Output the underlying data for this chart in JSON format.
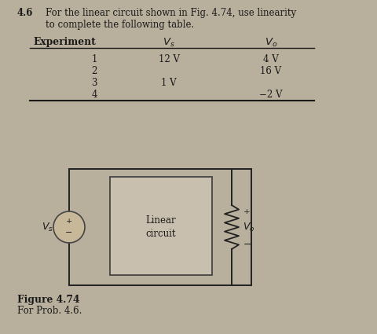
{
  "problem_number": "4.6",
  "problem_text_line1": "For the linear circuit shown in Fig. 4.74, use linearity",
  "problem_text_line2": "to complete the following table.",
  "table_rows": [
    [
      "1",
      "12 V",
      "4 V"
    ],
    [
      "2",
      "",
      "16 V"
    ],
    [
      "3",
      "1 V",
      ""
    ],
    [
      "4",
      "",
      "−2 V"
    ]
  ],
  "figure_label": "Figure 4.74",
  "figure_caption": "For Prob. 4.6.",
  "bg_color": "#b8af9c",
  "text_color": "#1a1a1a",
  "circuit_box_facecolor": "#c8bfae",
  "circuit_box_edgecolor": "#444444",
  "wire_color": "#222222",
  "source_facecolor": "#c8b89a",
  "source_edgecolor": "#444444"
}
